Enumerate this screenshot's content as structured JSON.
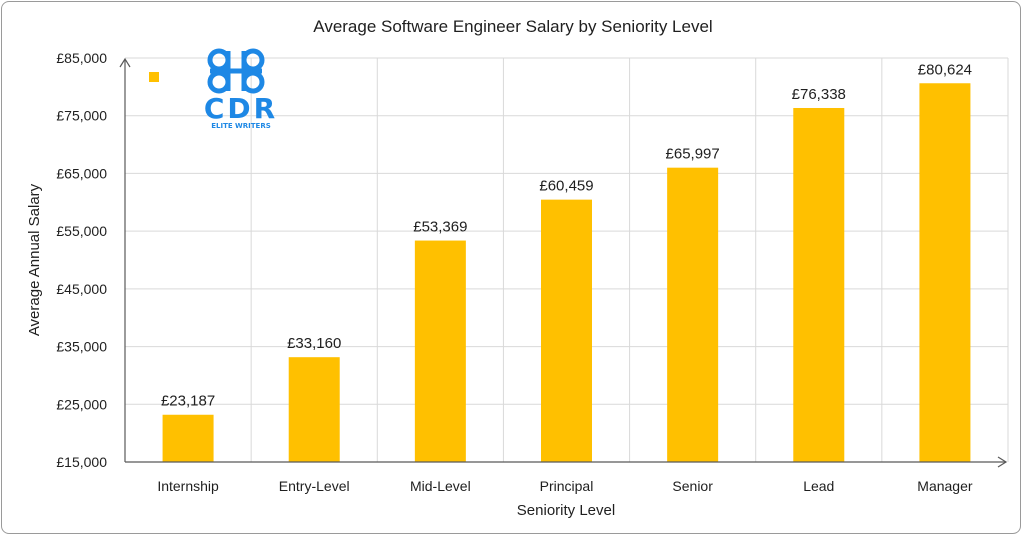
{
  "chart_data": {
    "type": "bar",
    "title": "Average Software Engineer Salary by Seniority Level",
    "xlabel": "Seniority Level",
    "ylabel": "Average Annual Salary",
    "categories": [
      "Internship",
      "Entry-Level",
      "Mid-Level",
      "Principal",
      "Senior",
      "Lead",
      "Manager"
    ],
    "values": [
      23187,
      33160,
      53369,
      60459,
      65997,
      76338,
      80624
    ],
    "data_labels": [
      "£23,187",
      "£33,160",
      "£53,369",
      "£60,459",
      "£65,997",
      "£76,338",
      "£80,624"
    ],
    "ylim": [
      15000,
      85000
    ],
    "yticks": [
      15000,
      25000,
      35000,
      45000,
      55000,
      65000,
      75000,
      85000
    ],
    "ytick_labels": [
      "£15,000",
      "£25,000",
      "£35,000",
      "£45,000",
      "£55,000",
      "£65,000",
      "£75,000",
      "£85,000"
    ],
    "grid": true,
    "legend": "top-left",
    "bar_color": "#FFC000",
    "grid_color": "#D9D9D9",
    "axis_color": "#595959"
  },
  "logo": {
    "main_text": "CDR",
    "sub_text": "ELITE WRITERS",
    "color": "#1E88E5"
  }
}
